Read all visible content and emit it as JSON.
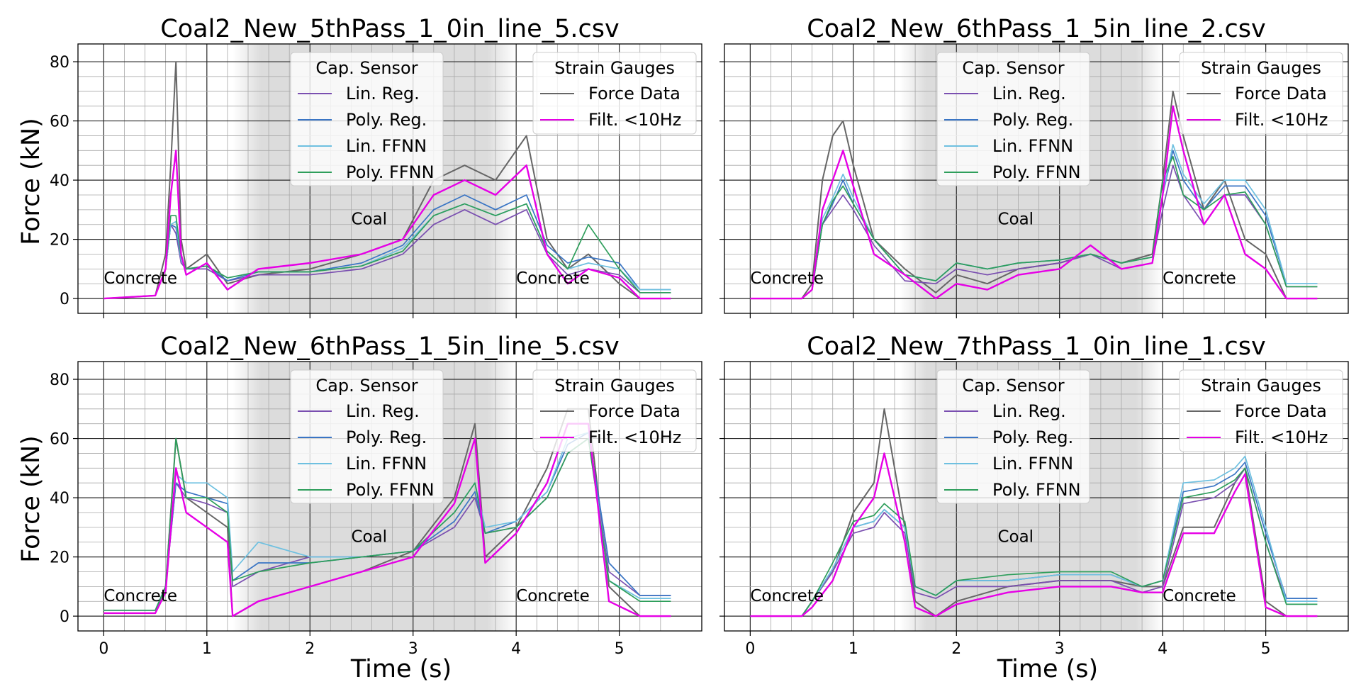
{
  "figure": {
    "x_axis_label": "Time (s)",
    "y_axis_label": "Force (kN)"
  },
  "chart_data": [
    {
      "type": "line",
      "title": "Coal2_New_5thPass_1_0in_line_5.csv",
      "xlabel": "",
      "ylabel": "Force (kN)",
      "xlim": [
        -0.25,
        5.8
      ],
      "ylim": [
        -5,
        86
      ],
      "xticks": [
        0,
        1,
        2,
        3,
        4,
        5
      ],
      "yticks": [
        0,
        20,
        40,
        60,
        80
      ],
      "grid": true,
      "shaded_coal_region": [
        1.25,
        4.0
      ],
      "annotations": [
        {
          "text": "Concrete",
          "x": 0.0,
          "y": 5
        },
        {
          "text": "Coal",
          "x": 2.4,
          "y": 25
        },
        {
          "text": "Concrete",
          "x": 4.0,
          "y": 5
        }
      ],
      "legends": [
        {
          "title": "Cap. Sensor",
          "position": "upper-center",
          "entries": [
            "Lin. Reg.",
            "Poly. Reg.",
            "Lin. FFNN",
            "Poly. FFNN"
          ]
        },
        {
          "title": "Strain Gauges",
          "position": "upper-right",
          "entries": [
            "Force Data",
            "Filt. <10Hz"
          ]
        }
      ],
      "x": [
        0.0,
        0.5,
        0.6,
        0.65,
        0.7,
        0.75,
        0.8,
        1.0,
        1.2,
        1.5,
        2.0,
        2.5,
        2.9,
        3.2,
        3.5,
        3.8,
        4.1,
        4.3,
        4.5,
        4.7,
        5.0,
        5.2,
        5.5
      ],
      "series": [
        {
          "name": "Force Data",
          "color": "#666666",
          "values": [
            0,
            1,
            15,
            45,
            80,
            20,
            10,
            15,
            5,
            8,
            10,
            15,
            20,
            40,
            45,
            40,
            55,
            20,
            10,
            15,
            5,
            0,
            0
          ]
        },
        {
          "name": "Filt. <10Hz",
          "color": "#e600e6",
          "values": [
            0,
            1,
            10,
            35,
            50,
            15,
            8,
            12,
            3,
            10,
            12,
            15,
            20,
            35,
            40,
            35,
            45,
            15,
            5,
            10,
            7,
            0,
            0
          ]
        },
        {
          "name": "Lin. Reg.",
          "color": "#7a4fb0",
          "values": [
            0,
            1,
            10,
            25,
            22,
            12,
            10,
            10,
            6,
            8,
            8,
            10,
            15,
            25,
            30,
            25,
            30,
            15,
            8,
            10,
            8,
            2,
            2
          ]
        },
        {
          "name": "Poly. Reg.",
          "color": "#3a75c4",
          "values": [
            0,
            1,
            10,
            25,
            24,
            13,
            10,
            11,
            6,
            9,
            9,
            12,
            18,
            30,
            35,
            30,
            35,
            18,
            12,
            14,
            12,
            3,
            3
          ]
        },
        {
          "name": "Lin. FFNN",
          "color": "#6ec0e0",
          "values": [
            0,
            1,
            10,
            25,
            26,
            13,
            10,
            11,
            7,
            9,
            9,
            11,
            17,
            28,
            32,
            28,
            32,
            16,
            10,
            12,
            10,
            3,
            3
          ]
        },
        {
          "name": "Poly. FFNN",
          "color": "#2e9e5b",
          "values": [
            0,
            1,
            10,
            28,
            28,
            14,
            10,
            11,
            7,
            9,
            9,
            11,
            16,
            28,
            32,
            28,
            32,
            16,
            10,
            25,
            10,
            2,
            2
          ]
        }
      ]
    },
    {
      "type": "line",
      "title": "Coal2_New_6thPass_1_5in_line_2.csv",
      "xlabel": "",
      "ylabel": "",
      "xlim": [
        -0.25,
        5.8
      ],
      "ylim": [
        -5,
        86
      ],
      "xticks": [
        0,
        1,
        2,
        3,
        4,
        5
      ],
      "yticks": [
        0,
        20,
        40,
        60,
        80
      ],
      "grid": true,
      "shaded_coal_region": [
        1.45,
        4.0
      ],
      "annotations": [
        {
          "text": "Concrete",
          "x": 0.0,
          "y": 5
        },
        {
          "text": "Coal",
          "x": 2.4,
          "y": 25
        },
        {
          "text": "Concrete",
          "x": 4.0,
          "y": 5
        }
      ],
      "legends": [
        {
          "title": "Cap. Sensor",
          "position": "upper-center",
          "entries": [
            "Lin. Reg.",
            "Poly. Reg.",
            "Lin. FFNN",
            "Poly. FFNN"
          ]
        },
        {
          "title": "Strain Gauges",
          "position": "upper-right",
          "entries": [
            "Force Data",
            "Filt. <10Hz"
          ]
        }
      ],
      "x": [
        0.0,
        0.5,
        0.6,
        0.7,
        0.8,
        0.9,
        1.0,
        1.2,
        1.5,
        1.8,
        2.0,
        2.3,
        2.6,
        3.0,
        3.3,
        3.6,
        3.9,
        4.0,
        4.1,
        4.2,
        4.4,
        4.6,
        4.8,
        5.0,
        5.2,
        5.5
      ],
      "series": [
        {
          "name": "Force Data",
          "color": "#666666",
          "values": [
            0,
            0,
            5,
            40,
            55,
            60,
            45,
            20,
            10,
            2,
            8,
            5,
            10,
            12,
            15,
            12,
            15,
            40,
            70,
            55,
            30,
            40,
            20,
            15,
            0,
            0
          ]
        },
        {
          "name": "Filt. <10Hz",
          "color": "#e600e6",
          "values": [
            0,
            0,
            3,
            30,
            40,
            50,
            38,
            15,
            8,
            0,
            5,
            3,
            8,
            10,
            18,
            10,
            12,
            35,
            65,
            50,
            25,
            35,
            15,
            10,
            0,
            0
          ]
        },
        {
          "name": "Lin. Reg.",
          "color": "#7a4fb0",
          "values": [
            0,
            0,
            3,
            25,
            30,
            35,
            30,
            18,
            6,
            5,
            10,
            8,
            10,
            12,
            15,
            10,
            12,
            30,
            45,
            35,
            25,
            35,
            35,
            25,
            4,
            4
          ]
        },
        {
          "name": "Poly. Reg.",
          "color": "#3a75c4",
          "values": [
            0,
            0,
            3,
            25,
            32,
            40,
            32,
            20,
            8,
            6,
            12,
            10,
            12,
            13,
            15,
            12,
            14,
            35,
            50,
            40,
            30,
            38,
            38,
            28,
            5,
            5
          ]
        },
        {
          "name": "Lin. FFNN",
          "color": "#6ec0e0",
          "values": [
            0,
            0,
            3,
            27,
            34,
            42,
            34,
            20,
            8,
            6,
            12,
            10,
            12,
            13,
            15,
            12,
            14,
            35,
            52,
            42,
            32,
            40,
            40,
            30,
            5,
            5
          ]
        },
        {
          "name": "Poly. FFNN",
          "color": "#2e9e5b",
          "values": [
            0,
            0,
            3,
            25,
            33,
            38,
            32,
            20,
            8,
            6,
            12,
            10,
            12,
            13,
            15,
            12,
            14,
            40,
            48,
            35,
            30,
            35,
            36,
            25,
            4,
            4
          ]
        }
      ]
    },
    {
      "type": "line",
      "title": "Coal2_New_6thPass_1_5in_line_5.csv",
      "xlabel": "Time (s)",
      "ylabel": "Force (kN)",
      "xlim": [
        -0.25,
        5.8
      ],
      "ylim": [
        -5,
        86
      ],
      "xticks": [
        0,
        1,
        2,
        3,
        4,
        5
      ],
      "yticks": [
        0,
        20,
        40,
        60,
        80
      ],
      "grid": true,
      "shaded_coal_region": [
        1.25,
        4.0
      ],
      "annotations": [
        {
          "text": "Concrete",
          "x": 0.0,
          "y": 5
        },
        {
          "text": "Coal",
          "x": 2.4,
          "y": 25
        },
        {
          "text": "Concrete",
          "x": 4.0,
          "y": 5
        }
      ],
      "legends": [
        {
          "title": "Cap. Sensor",
          "position": "upper-center",
          "entries": [
            "Lin. Reg.",
            "Poly. Reg.",
            "Lin. FFNN",
            "Poly. FFNN"
          ]
        },
        {
          "title": "Strain Gauges",
          "position": "upper-right",
          "entries": [
            "Force Data",
            "Filt. <10Hz"
          ]
        }
      ],
      "x": [
        0.0,
        0.5,
        0.6,
        0.7,
        0.8,
        1.0,
        1.2,
        1.25,
        1.5,
        2.0,
        2.5,
        3.0,
        3.4,
        3.6,
        3.7,
        4.0,
        4.3,
        4.5,
        4.7,
        4.9,
        5.2,
        5.5
      ],
      "series": [
        {
          "name": "Force Data",
          "color": "#666666",
          "values": [
            1,
            1,
            10,
            60,
            40,
            35,
            30,
            0,
            5,
            10,
            15,
            22,
            40,
            65,
            20,
            30,
            50,
            70,
            70,
            10,
            0,
            0
          ]
        },
        {
          "name": "Filt. <10Hz",
          "color": "#e600e6",
          "values": [
            1,
            1,
            8,
            50,
            35,
            30,
            25,
            0,
            5,
            10,
            15,
            20,
            38,
            60,
            18,
            28,
            45,
            65,
            65,
            5,
            0,
            0
          ]
        },
        {
          "name": "Lin. Reg.",
          "color": "#7a4fb0",
          "values": [
            2,
            2,
            10,
            45,
            40,
            38,
            35,
            10,
            15,
            20,
            20,
            22,
            30,
            40,
            28,
            30,
            40,
            55,
            60,
            15,
            7,
            7
          ]
        },
        {
          "name": "Poly. Reg.",
          "color": "#3a75c4",
          "values": [
            2,
            2,
            10,
            45,
            42,
            40,
            38,
            12,
            18,
            18,
            20,
            22,
            32,
            42,
            28,
            32,
            42,
            58,
            62,
            18,
            7,
            7
          ]
        },
        {
          "name": "Lin. FFNN",
          "color": "#6ec0e0",
          "values": [
            2,
            2,
            10,
            48,
            45,
            45,
            40,
            15,
            25,
            20,
            20,
            22,
            35,
            45,
            30,
            32,
            42,
            60,
            62,
            12,
            6,
            6
          ]
        },
        {
          "name": "Poly. FFNN",
          "color": "#2e9e5b",
          "values": [
            2,
            2,
            10,
            60,
            40,
            40,
            35,
            12,
            15,
            18,
            20,
            22,
            35,
            45,
            28,
            30,
            40,
            55,
            60,
            12,
            5,
            5
          ]
        }
      ]
    },
    {
      "type": "line",
      "title": "Coal2_New_7thPass_1_0in_line_1.csv",
      "xlabel": "Time (s)",
      "ylabel": "",
      "xlim": [
        -0.25,
        5.8
      ],
      "ylim": [
        -5,
        86
      ],
      "xticks": [
        0,
        1,
        2,
        3,
        4,
        5
      ],
      "yticks": [
        0,
        20,
        40,
        60,
        80
      ],
      "grid": true,
      "shaded_coal_region": [
        1.45,
        4.0
      ],
      "annotations": [
        {
          "text": "Concrete",
          "x": 0.0,
          "y": 5
        },
        {
          "text": "Coal",
          "x": 2.4,
          "y": 25
        },
        {
          "text": "Concrete",
          "x": 4.0,
          "y": 5
        }
      ],
      "legends": [
        {
          "title": "Cap. Sensor",
          "position": "upper-center",
          "entries": [
            "Lin. Reg.",
            "Poly. Reg.",
            "Lin. FFNN",
            "Poly. FFNN"
          ]
        },
        {
          "title": "Strain Gauges",
          "position": "upper-right",
          "entries": [
            "Force Data",
            "Filt. <10Hz"
          ]
        }
      ],
      "x": [
        0.0,
        0.5,
        0.6,
        0.8,
        1.0,
        1.2,
        1.3,
        1.5,
        1.6,
        1.8,
        2.0,
        2.5,
        3.0,
        3.5,
        3.8,
        4.0,
        4.2,
        4.5,
        4.7,
        4.8,
        5.0,
        5.2,
        5.5
      ],
      "series": [
        {
          "name": "Force Data",
          "color": "#666666",
          "values": [
            0,
            0,
            5,
            15,
            35,
            45,
            70,
            30,
            5,
            0,
            5,
            10,
            12,
            12,
            10,
            10,
            30,
            30,
            45,
            50,
            5,
            0,
            0
          ]
        },
        {
          "name": "Filt. <10Hz",
          "color": "#e600e6",
          "values": [
            0,
            0,
            3,
            12,
            30,
            40,
            55,
            25,
            3,
            0,
            4,
            8,
            10,
            10,
            8,
            8,
            28,
            28,
            42,
            48,
            3,
            0,
            0
          ]
        },
        {
          "name": "Lin. Reg.",
          "color": "#7a4fb0",
          "values": [
            0,
            0,
            5,
            15,
            28,
            30,
            35,
            28,
            8,
            6,
            10,
            10,
            12,
            12,
            8,
            10,
            38,
            40,
            45,
            50,
            25,
            5,
            5
          ]
        },
        {
          "name": "Poly. Reg.",
          "color": "#3a75c4",
          "values": [
            0,
            0,
            5,
            16,
            30,
            32,
            36,
            30,
            10,
            7,
            12,
            12,
            14,
            14,
            10,
            12,
            42,
            44,
            48,
            52,
            28,
            6,
            6
          ]
        },
        {
          "name": "Lin. FFNN",
          "color": "#6ec0e0",
          "values": [
            0,
            0,
            5,
            16,
            30,
            32,
            36,
            30,
            10,
            7,
            12,
            12,
            14,
            14,
            10,
            12,
            45,
            46,
            50,
            54,
            30,
            5,
            5
          ]
        },
        {
          "name": "Poly. FFNN",
          "color": "#2e9e5b",
          "values": [
            0,
            0,
            5,
            18,
            32,
            34,
            38,
            32,
            10,
            7,
            12,
            14,
            15,
            15,
            10,
            12,
            40,
            42,
            46,
            50,
            25,
            4,
            4
          ]
        }
      ]
    }
  ]
}
